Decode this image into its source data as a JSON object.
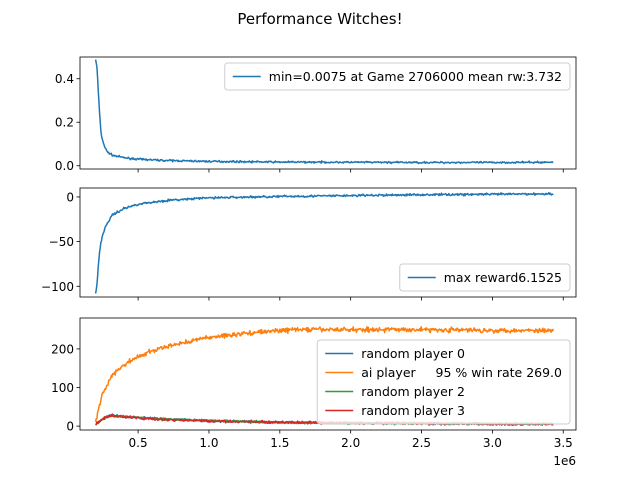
{
  "chart_data": [
    {
      "type": "line",
      "suptitle": "Performance Witches!",
      "xlim": [
        0.09,
        3.59
      ],
      "ylim": [
        -0.015,
        0.5
      ],
      "yticks": [
        0.0,
        0.2,
        0.4
      ],
      "ytick_labels": [
        "0.0",
        "0.2",
        "0.4"
      ],
      "xticks": [
        0.5,
        1.0,
        1.5,
        2.0,
        2.5,
        3.0,
        3.5
      ],
      "show_x_labels": false,
      "legend": "top-right",
      "series": [
        {
          "name": "min=0.0075 at Game 2706000 mean rw:3.732",
          "color": "#1f77b4",
          "noise": 0.004,
          "points": [
            [
              0.2,
              0.49
            ],
            [
              0.21,
              0.45
            ],
            [
              0.22,
              0.33
            ],
            [
              0.23,
              0.22
            ],
            [
              0.24,
              0.14
            ],
            [
              0.26,
              0.095
            ],
            [
              0.28,
              0.065
            ],
            [
              0.32,
              0.048
            ],
            [
              0.4,
              0.037
            ],
            [
              0.5,
              0.03
            ],
            [
              0.7,
              0.024
            ],
            [
              1.0,
              0.02
            ],
            [
              1.5,
              0.017
            ],
            [
              2.0,
              0.016
            ],
            [
              2.5,
              0.015
            ],
            [
              3.0,
              0.015
            ],
            [
              3.43,
              0.016
            ]
          ]
        }
      ]
    },
    {
      "type": "line",
      "xlim": [
        0.09,
        3.59
      ],
      "ylim": [
        -112,
        10
      ],
      "yticks": [
        0,
        -50,
        -100
      ],
      "ytick_labels": [
        "0",
        "−50",
        "−100"
      ],
      "xticks": [
        0.5,
        1.0,
        1.5,
        2.0,
        2.5,
        3.0,
        3.5
      ],
      "show_x_labels": false,
      "legend": "bottom-right",
      "series": [
        {
          "name": "max reward6.1525",
          "color": "#1f77b4",
          "noise": 1.2,
          "points": [
            [
              0.2,
              -108
            ],
            [
              0.21,
              -98
            ],
            [
              0.22,
              -75
            ],
            [
              0.23,
              -58
            ],
            [
              0.25,
              -42
            ],
            [
              0.28,
              -30
            ],
            [
              0.32,
              -20
            ],
            [
              0.4,
              -13
            ],
            [
              0.5,
              -8
            ],
            [
              0.7,
              -4
            ],
            [
              1.0,
              -1
            ],
            [
              1.5,
              0.5
            ],
            [
              2.0,
              1.5
            ],
            [
              2.5,
              2.5
            ],
            [
              3.0,
              3
            ],
            [
              3.43,
              3.5
            ]
          ]
        }
      ]
    },
    {
      "type": "line",
      "xlim": [
        0.09,
        3.59
      ],
      "ylim": [
        -10,
        280
      ],
      "yticks": [
        0,
        100,
        200
      ],
      "ytick_labels": [
        "0",
        "100",
        "200"
      ],
      "xticks": [
        0.5,
        1.0,
        1.5,
        2.0,
        2.5,
        3.0,
        3.5
      ],
      "xtick_labels": [
        "0.5",
        "1.0",
        "1.5",
        "2.0",
        "2.5",
        "3.0",
        "3.5"
      ],
      "show_x_labels": true,
      "offset_text": "1e6",
      "legend": "bottom-right",
      "series": [
        {
          "name": "random player 0",
          "color": "#1f77b4",
          "noise": 3,
          "points": [
            [
              0.2,
              5
            ],
            [
              0.25,
              18
            ],
            [
              0.3,
              28
            ],
            [
              0.4,
              25
            ],
            [
              0.6,
              20
            ],
            [
              1.0,
              14
            ],
            [
              1.5,
              10
            ],
            [
              2.0,
              8
            ],
            [
              2.5,
              7
            ],
            [
              3.0,
              6
            ],
            [
              3.43,
              6
            ]
          ]
        },
        {
          "name": "ai player     95 % win rate 269.0",
          "color": "#ff7f0e",
          "noise": 6,
          "points": [
            [
              0.2,
              5
            ],
            [
              0.22,
              45
            ],
            [
              0.25,
              85
            ],
            [
              0.3,
              120
            ],
            [
              0.35,
              145
            ],
            [
              0.45,
              170
            ],
            [
              0.6,
              195
            ],
            [
              0.8,
              215
            ],
            [
              1.0,
              230
            ],
            [
              1.3,
              242
            ],
            [
              1.6,
              250
            ],
            [
              2.0,
              250
            ],
            [
              2.5,
              250
            ],
            [
              3.0,
              248
            ],
            [
              3.43,
              248
            ]
          ]
        },
        {
          "name": "random player 2",
          "color": "#2ca02c",
          "noise": 3,
          "points": [
            [
              0.2,
              5
            ],
            [
              0.25,
              18
            ],
            [
              0.3,
              27
            ],
            [
              0.4,
              25
            ],
            [
              0.6,
              19
            ],
            [
              1.0,
              14
            ],
            [
              1.5,
              10
            ],
            [
              2.0,
              8
            ],
            [
              2.5,
              7
            ],
            [
              3.0,
              6
            ],
            [
              3.43,
              6
            ]
          ]
        },
        {
          "name": "random player 3",
          "color": "#d62728",
          "noise": 3,
          "points": [
            [
              0.2,
              5
            ],
            [
              0.25,
              18
            ],
            [
              0.3,
              28
            ],
            [
              0.4,
              24
            ],
            [
              0.6,
              18
            ],
            [
              1.0,
              13
            ],
            [
              1.5,
              10
            ],
            [
              2.0,
              8
            ],
            [
              2.5,
              7
            ],
            [
              3.0,
              6
            ],
            [
              3.43,
              6
            ]
          ]
        }
      ]
    }
  ]
}
